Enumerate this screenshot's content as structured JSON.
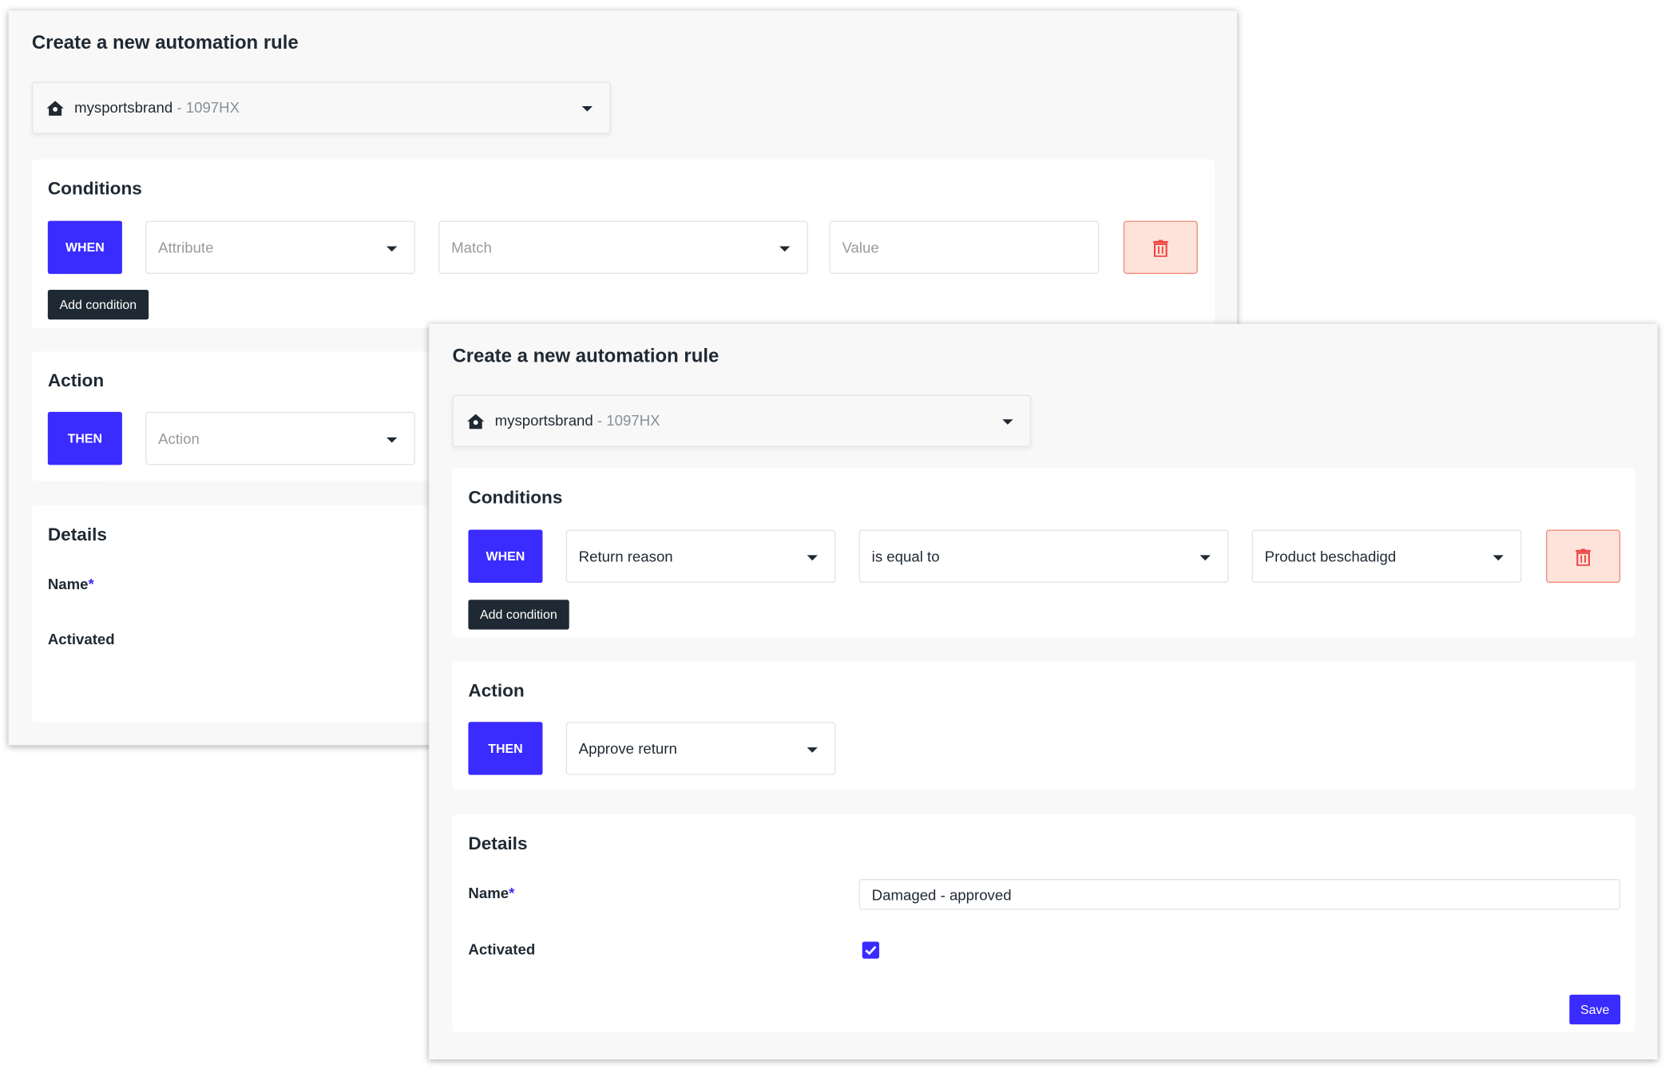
{
  "colors": {
    "accent": "#3a2bff",
    "dark": "#1f2933",
    "danger_bg": "#fde3da",
    "danger": "#ef4444"
  },
  "back_panel": {
    "title": "Create a new automation rule",
    "store": {
      "name": "mysportsbrand",
      "code": " - 1097HX",
      "icon": "home-icon"
    },
    "conditions": {
      "heading": "Conditions",
      "when_label": "WHEN",
      "attribute_placeholder": "Attribute",
      "match_placeholder": "Match",
      "value_placeholder": "Value",
      "add_condition_label": "Add condition"
    },
    "action": {
      "heading": "Action",
      "then_label": "THEN",
      "action_placeholder": "Action"
    },
    "details": {
      "heading": "Details",
      "name_label": "Name",
      "required_mark": "*",
      "activated_label": "Activated"
    }
  },
  "front_panel": {
    "title": "Create a new automation rule",
    "store": {
      "name": "mysportsbrand",
      "code": " - 1097HX",
      "icon": "home-icon"
    },
    "conditions": {
      "heading": "Conditions",
      "when_label": "WHEN",
      "attribute_value": "Return reason",
      "match_value": "is equal to",
      "value_value": "Product beschadigd",
      "add_condition_label": "Add condition"
    },
    "action": {
      "heading": "Action",
      "then_label": "THEN",
      "action_value": "Approve return"
    },
    "details": {
      "heading": "Details",
      "name_label": "Name",
      "required_mark": "*",
      "name_value": "Damaged - approved",
      "activated_label": "Activated",
      "activated": true,
      "save_label": "Save"
    }
  }
}
